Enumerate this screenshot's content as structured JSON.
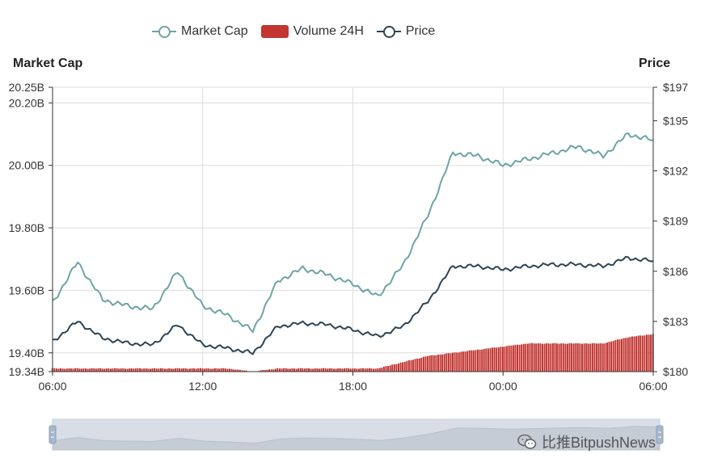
{
  "legend": {
    "market_cap": "Market Cap",
    "volume": "Volume 24H",
    "price": "Price"
  },
  "axis": {
    "left_title": "Market Cap",
    "right_title": "Price",
    "left_ticks": [
      "20.25B",
      "20.20B",
      "20.00B",
      "19.80B",
      "19.60B",
      "19.40B",
      "19.34B"
    ],
    "right_ticks": [
      "$197",
      "$195",
      "$192",
      "$189",
      "$186",
      "$183",
      "$180"
    ],
    "x_ticks": [
      "06:00",
      "12:00",
      "18:00",
      "00:00",
      "06:00"
    ]
  },
  "watermark": "比推BitpushNews",
  "colors": {
    "market_cap": "#6fa3a6",
    "volume": "#c23531",
    "price": "#2f4554",
    "grid": "#dddddd",
    "axis": "#333333",
    "slider_fill": "#d8dde6"
  },
  "chart_data": {
    "type": "line",
    "x": [
      "06:00",
      "07:00",
      "08:00",
      "09:00",
      "10:00",
      "11:00",
      "12:00",
      "13:00",
      "14:00",
      "15:00",
      "16:00",
      "17:00",
      "18:00",
      "19:00",
      "20:00",
      "21:00",
      "22:00",
      "23:00",
      "00:00",
      "01:00",
      "02:00",
      "03:00",
      "04:00",
      "05:00",
      "06:00"
    ],
    "series": [
      {
        "name": "Market Cap",
        "axis": "left",
        "values": [
          19.56,
          19.69,
          19.57,
          19.55,
          19.54,
          19.66,
          19.55,
          19.52,
          19.47,
          19.63,
          19.67,
          19.65,
          19.62,
          19.58,
          19.68,
          19.84,
          20.04,
          20.03,
          20.0,
          20.02,
          20.04,
          20.06,
          20.03,
          20.1,
          20.08
        ]
      },
      {
        "name": "Price",
        "axis": "right",
        "values": [
          181.8,
          183.0,
          182.0,
          181.7,
          181.6,
          182.8,
          181.6,
          181.4,
          181.1,
          182.7,
          182.9,
          182.8,
          182.5,
          182.1,
          182.7,
          184.2,
          186.3,
          186.3,
          186.1,
          186.3,
          186.4,
          186.4,
          186.3,
          186.8,
          186.6
        ]
      },
      {
        "name": "Volume 24H",
        "axis": "left",
        "values": [
          19.35,
          19.35,
          19.35,
          19.35,
          19.35,
          19.35,
          19.35,
          19.35,
          19.34,
          19.35,
          19.35,
          19.35,
          19.35,
          19.35,
          19.37,
          19.39,
          19.4,
          19.41,
          19.42,
          19.43,
          19.43,
          19.43,
          19.43,
          19.45,
          19.46
        ]
      }
    ],
    "ylim_left": [
      19.34,
      20.25
    ],
    "ylim_right": [
      180,
      197
    ],
    "grid": true,
    "legend_position": "top-center"
  }
}
